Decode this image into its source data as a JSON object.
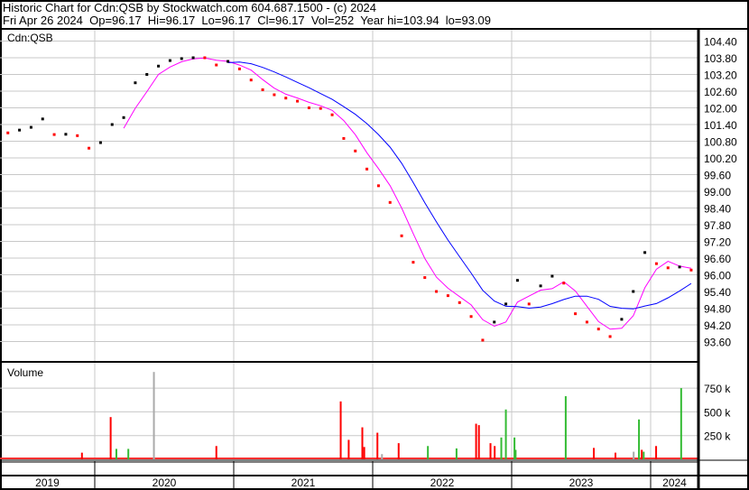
{
  "header": {
    "title": "Historic Chart for Cdn:QSB by Stockwatch.com 604.687.1500 - (c) 2024",
    "quote_line": "Fri Apr 26 2024  Op=96.17  Hi=96.17  Lo=96.17  Cl=96.17  Vol=252  Year hi=103.94  lo=93.09"
  },
  "chart_data": [
    {
      "type": "scatter",
      "panel": "price",
      "label": "Cdn:QSB",
      "y_ticks": [
        "104.40",
        "103.80",
        "103.20",
        "102.60",
        "102.00",
        "101.40",
        "100.80",
        "100.20",
        "99.60",
        "99.00",
        "98.40",
        "97.80",
        "97.20",
        "96.60",
        "96.00",
        "95.40",
        "94.80",
        "94.20",
        "93.60"
      ],
      "ylim": [
        93.3,
        104.6
      ],
      "grid": true,
      "axis_position": "right",
      "colors": {
        "down": "#ff0000",
        "up": "#000000",
        "short_ma": "#ff00ff",
        "long_ma": "#0000ff"
      },
      "points": [
        [
          "2019-05",
          101.1
        ],
        [
          "2019-06",
          101.2
        ],
        [
          "2019-07",
          101.3
        ],
        [
          "2019-08",
          101.6
        ],
        [
          "2019-09",
          101.04
        ],
        [
          "2019-10",
          101.05
        ],
        [
          "2019-11",
          101.0
        ],
        [
          "2019-12",
          100.55
        ],
        [
          "2020-01",
          100.75
        ],
        [
          "2020-02",
          101.4
        ],
        [
          "2020-03",
          101.65
        ],
        [
          "2020-04",
          102.9
        ],
        [
          "2020-05",
          103.2
        ],
        [
          "2020-06",
          103.5
        ],
        [
          "2020-07",
          103.7
        ],
        [
          "2020-08",
          103.77
        ],
        [
          "2020-09",
          103.8
        ],
        [
          "2020-10",
          103.8
        ],
        [
          "2020-11",
          103.54
        ],
        [
          "2020-12",
          103.67
        ],
        [
          "2021-01",
          103.4
        ],
        [
          "2021-02",
          103.0
        ],
        [
          "2021-03",
          102.65
        ],
        [
          "2021-04",
          102.47
        ],
        [
          "2021-05",
          102.35
        ],
        [
          "2021-06",
          102.24
        ],
        [
          "2021-07",
          102.0
        ],
        [
          "2021-08",
          101.98
        ],
        [
          "2021-09",
          101.75
        ],
        [
          "2021-10",
          100.9
        ],
        [
          "2021-11",
          100.45
        ],
        [
          "2021-12",
          99.8
        ],
        [
          "2022-01",
          99.2
        ],
        [
          "2022-02",
          98.6
        ],
        [
          "2022-03",
          97.4
        ],
        [
          "2022-04",
          96.45
        ],
        [
          "2022-05",
          95.9
        ],
        [
          "2022-06",
          95.4
        ],
        [
          "2022-07",
          95.25
        ],
        [
          "2022-08",
          95.0
        ],
        [
          "2022-09",
          94.5
        ],
        [
          "2022-10",
          93.65
        ],
        [
          "2022-11",
          94.3
        ],
        [
          "2022-12",
          94.95
        ],
        [
          "2023-01",
          95.8
        ],
        [
          "2023-02",
          94.95
        ],
        [
          "2023-03",
          95.6
        ],
        [
          "2023-04",
          95.95
        ],
        [
          "2023-05",
          95.7
        ],
        [
          "2023-06",
          94.6
        ],
        [
          "2023-07",
          94.3
        ],
        [
          "2023-08",
          94.05
        ],
        [
          "2023-09",
          93.78
        ],
        [
          "2023-10",
          94.4
        ],
        [
          "2023-11",
          95.4
        ],
        [
          "2023-12",
          96.8
        ],
        [
          "2024-01",
          96.4
        ],
        [
          "2024-02",
          96.25
        ],
        [
          "2024-03",
          96.28
        ],
        [
          "2024-04",
          96.17
        ]
      ],
      "x_ticks": [
        "2019",
        "2020",
        "2021",
        "2022",
        "2023",
        "2024"
      ]
    },
    {
      "type": "bar",
      "panel": "volume",
      "label": "Volume",
      "y_ticks": [
        "750 k",
        "500 k",
        "250 k"
      ],
      "ylim": [
        0,
        1000000
      ],
      "grid": true,
      "colors": {
        "down": "#ff0000",
        "up": "#33bb33",
        "unchanged": "#aaaaaa"
      },
      "bars": [
        [
          "2019-11-25",
          70000,
          "down"
        ],
        [
          "2020-02-09",
          445000,
          "down"
        ],
        [
          "2020-02-24",
          110000,
          "up"
        ],
        [
          "2020-03-25",
          110000,
          "up"
        ],
        [
          "2020-06-01",
          920000,
          "unchanged"
        ],
        [
          "2020-11-13",
          140000,
          "down"
        ],
        [
          "2021-10-05",
          610000,
          "down"
        ],
        [
          "2021-10-26",
          205000,
          "down"
        ],
        [
          "2021-12-01",
          337000,
          "down"
        ],
        [
          "2021-12-06",
          130000,
          "down"
        ],
        [
          "2022-01-10",
          280000,
          "down"
        ],
        [
          "2022-01-22",
          55000,
          "unchanged"
        ],
        [
          "2022-03-05",
          170000,
          "down"
        ],
        [
          "2022-05-21",
          140000,
          "up"
        ],
        [
          "2022-08-05",
          115000,
          "up"
        ],
        [
          "2022-09-26",
          375000,
          "down"
        ],
        [
          "2022-10-03",
          360000,
          "down"
        ],
        [
          "2022-11-03",
          170000,
          "down"
        ],
        [
          "2022-11-14",
          140000,
          "down"
        ],
        [
          "2022-12-01",
          230000,
          "up"
        ],
        [
          "2022-12-13",
          525000,
          "up"
        ],
        [
          "2023-01-05",
          230000,
          "up"
        ],
        [
          "2023-01-08",
          100000,
          "up"
        ],
        [
          "2023-05-18",
          665000,
          "up"
        ],
        [
          "2023-07-31",
          120000,
          "down"
        ],
        [
          "2023-09-27",
          70000,
          "down"
        ],
        [
          "2023-11-14",
          80000,
          "unchanged"
        ],
        [
          "2023-11-28",
          420000,
          "up"
        ],
        [
          "2023-12-05",
          100000,
          "down"
        ],
        [
          "2023-12-10",
          80000,
          "up"
        ],
        [
          "2024-01-12",
          140000,
          "down"
        ],
        [
          "2024-03-17",
          750000,
          "up"
        ]
      ]
    }
  ]
}
